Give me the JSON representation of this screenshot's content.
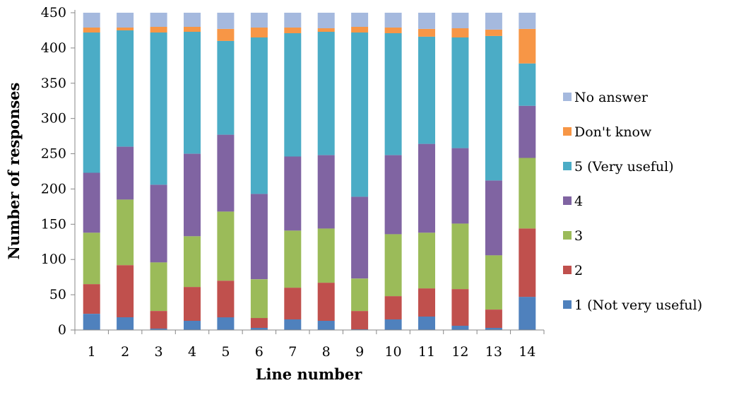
{
  "chart_data": {
    "type": "bar",
    "stacked": true,
    "title": "",
    "xlabel": "Line number",
    "ylabel": "Number of responses",
    "ylim": [
      0,
      450
    ],
    "yticks": [
      0,
      50,
      100,
      150,
      200,
      250,
      300,
      350,
      400,
      450
    ],
    "categories": [
      "1",
      "2",
      "3",
      "4",
      "5",
      "6",
      "7",
      "8",
      "9",
      "10",
      "11",
      "12",
      "13",
      "14"
    ],
    "grid": false,
    "legend_position": "right",
    "series": [
      {
        "name": "1 (Not very useful)",
        "color": "#4F81BD",
        "values": [
          23,
          18,
          2,
          13,
          18,
          3,
          15,
          13,
          1,
          15,
          19,
          6,
          3,
          47
        ]
      },
      {
        "name": "2",
        "color": "#C0504D",
        "values": [
          42,
          74,
          25,
          48,
          52,
          14,
          45,
          54,
          26,
          33,
          40,
          52,
          26,
          97
        ]
      },
      {
        "name": "3",
        "color": "#9BBB59",
        "values": [
          73,
          93,
          69,
          72,
          98,
          55,
          81,
          77,
          46,
          88,
          79,
          93,
          77,
          100
        ]
      },
      {
        "name": "4",
        "color": "#8064A2",
        "values": [
          85,
          75,
          110,
          117,
          109,
          121,
          105,
          104,
          116,
          112,
          126,
          107,
          106,
          74
        ]
      },
      {
        "name": "5 (Very useful)",
        "color": "#4BACC6",
        "values": [
          199,
          165,
          216,
          173,
          133,
          222,
          175,
          175,
          233,
          173,
          152,
          157,
          205,
          60
        ]
      },
      {
        "name": "Don't know",
        "color": "#F79646",
        "values": [
          7,
          4,
          8,
          7,
          17,
          14,
          8,
          5,
          8,
          8,
          11,
          13,
          9,
          49
        ]
      },
      {
        "name": "No answer",
        "color": "#A5B9DE",
        "values": [
          25,
          25,
          25,
          25,
          25,
          25,
          25,
          25,
          25,
          25,
          25,
          25,
          25,
          25
        ]
      }
    ]
  }
}
